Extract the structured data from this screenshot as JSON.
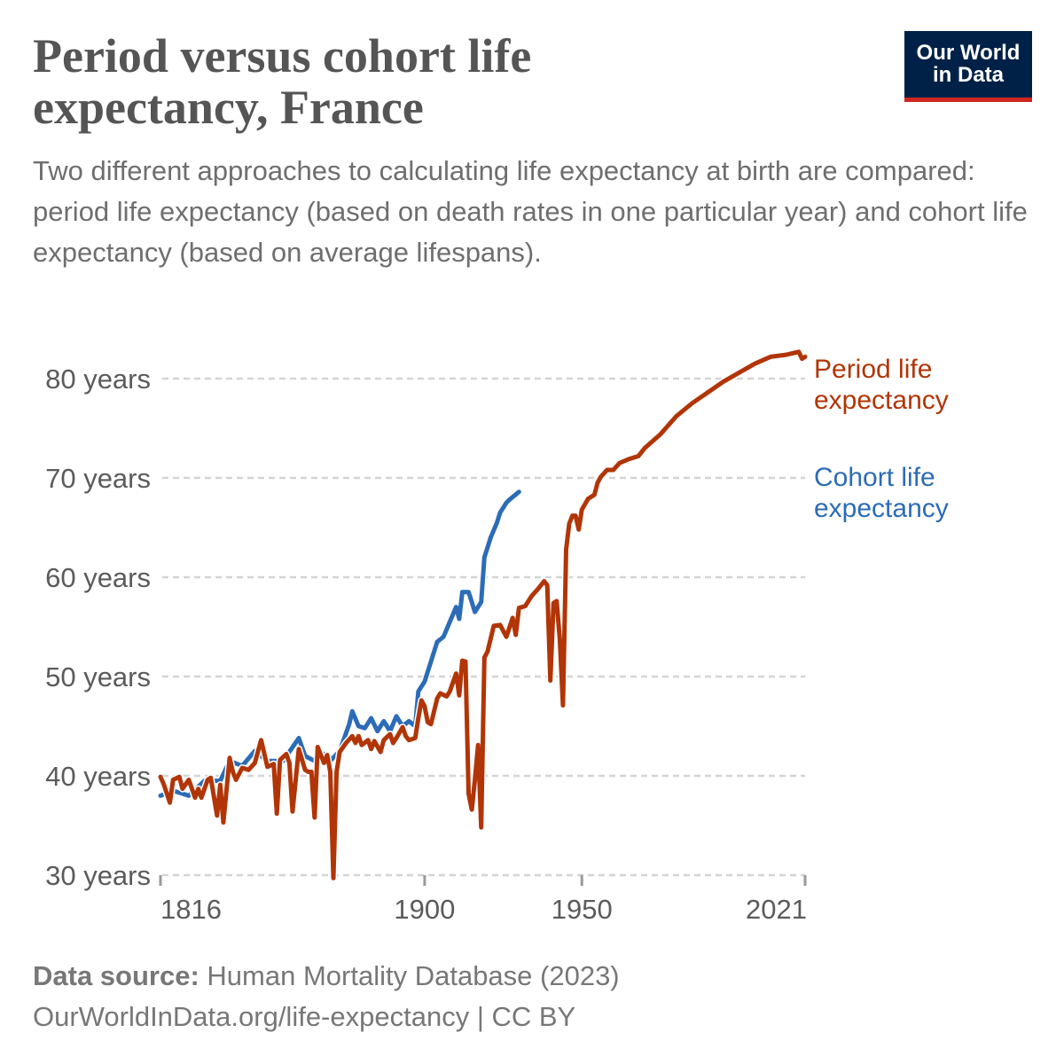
{
  "header": {
    "title": "Period versus cohort life expectancy, France",
    "subtitle": "Two different approaches to calculating life expectancy at birth are compared: period life expectancy (based on death rates in one particular year) and cohort life expectancy (based on average lifespans)."
  },
  "logo": {
    "line1": "Our World",
    "line2": "in Data",
    "bg": "#002147",
    "accent": "#ce261e"
  },
  "footer": {
    "source_label": "Data source:",
    "source": "Human Mortality Database (2023)",
    "url_line": "OurWorldInData.org/life-expectancy | CC BY"
  },
  "chart_data": {
    "type": "line",
    "xlim": [
      1816,
      2021
    ],
    "ylim": [
      30,
      80
    ],
    "grid": true,
    "legend": "inline-right",
    "x_ticks": [
      {
        "value": 1816,
        "label": "1816"
      },
      {
        "value": 1900,
        "label": "1900"
      },
      {
        "value": 1950,
        "label": "1950"
      },
      {
        "value": 2021,
        "label": "2021"
      }
    ],
    "y_ticks": [
      {
        "value": 30,
        "label": "30 years"
      },
      {
        "value": 40,
        "label": "40 years"
      },
      {
        "value": 50,
        "label": "50 years"
      },
      {
        "value": 60,
        "label": "60 years"
      },
      {
        "value": 70,
        "label": "70 years"
      },
      {
        "value": 80,
        "label": "80 years"
      }
    ],
    "series": [
      {
        "name": "Period life expectancy",
        "color": "#b13507",
        "x": [
          1816,
          1817,
          1819,
          1820,
          1822,
          1823,
          1825,
          1827,
          1828,
          1829,
          1831,
          1832,
          1834,
          1835,
          1836,
          1838,
          1839,
          1840,
          1842,
          1844,
          1846,
          1848,
          1850,
          1852,
          1853,
          1854,
          1856,
          1857,
          1858,
          1859,
          1860,
          1862,
          1863,
          1864,
          1865,
          1866,
          1868,
          1869,
          1870,
          1871,
          1872,
          1873,
          1875,
          1877,
          1878,
          1879,
          1880,
          1882,
          1883,
          1884,
          1886,
          1887,
          1889,
          1890,
          1891,
          1893,
          1894,
          1895,
          1897,
          1898,
          1899,
          1900,
          1901,
          1902,
          1904,
          1905,
          1907,
          1908,
          1910,
          1911,
          1912,
          1913,
          1914,
          1915,
          1916,
          1917,
          1918,
          1919,
          1920,
          1922,
          1924,
          1926,
          1928,
          1929,
          1930,
          1932,
          1934,
          1936,
          1938,
          1939,
          1940,
          1941,
          1942,
          1943,
          1944,
          1945,
          1946,
          1947,
          1948,
          1949,
          1950,
          1952,
          1954,
          1955,
          1956,
          1958,
          1960,
          1962,
          1965,
          1968,
          1970,
          1975,
          1980,
          1985,
          1990,
          1995,
          2000,
          2005,
          2010,
          2015,
          2019,
          2020,
          2021
        ],
        "y": [
          39.9,
          39.2,
          37.3,
          39.6,
          39.9,
          38.7,
          39.6,
          37.8,
          38.7,
          37.8,
          39.6,
          39.8,
          36.0,
          39.1,
          35.3,
          41.8,
          40.4,
          39.6,
          40.8,
          40.6,
          41.3,
          43.6,
          40.9,
          41.2,
          36.2,
          41.6,
          42.2,
          41.3,
          36.4,
          39.6,
          42.7,
          40.6,
          40.4,
          40.4,
          35.8,
          42.9,
          41.3,
          42.1,
          40.4,
          29.7,
          40.4,
          42.4,
          43.3,
          44.0,
          43.3,
          44.0,
          43.1,
          43.6,
          42.7,
          43.5,
          42.4,
          43.6,
          44.2,
          43.3,
          43.8,
          44.9,
          44.0,
          43.6,
          43.8,
          45.8,
          47.6,
          47.0,
          45.4,
          45.2,
          47.8,
          48.3,
          48.0,
          48.5,
          50.3,
          48.1,
          51.6,
          51.5,
          38.2,
          36.6,
          39.6,
          43.1,
          34.8,
          51.9,
          52.5,
          55.1,
          55.2,
          54.0,
          55.9,
          54.2,
          56.9,
          57.1,
          58.1,
          58.8,
          59.6,
          59.2,
          49.6,
          57.4,
          57.6,
          53.7,
          47.1,
          62.8,
          65.4,
          66.2,
          66.2,
          64.8,
          66.8,
          67.9,
          68.3,
          69.5,
          70.1,
          70.8,
          70.8,
          71.5,
          71.9,
          72.2,
          73.0,
          74.4,
          76.2,
          77.5,
          78.6,
          79.7,
          80.6,
          81.5,
          82.2,
          82.4,
          82.7,
          82.0,
          82.2
        ]
      },
      {
        "name": "Cohort life expectancy",
        "color": "#2c6cb7",
        "x": [
          1816,
          1820,
          1825,
          1830,
          1835,
          1838,
          1842,
          1846,
          1850,
          1855,
          1860,
          1862,
          1865,
          1868,
          1870,
          1873,
          1876,
          1877,
          1879,
          1881,
          1883,
          1885,
          1887,
          1889,
          1891,
          1893,
          1895,
          1897,
          1898,
          1900,
          1902,
          1904,
          1906,
          1908,
          1910,
          1911,
          1912,
          1914,
          1915,
          1916,
          1918,
          1919,
          1921,
          1923,
          1924,
          1926,
          1927,
          1930
        ],
        "y": [
          38.0,
          38.5,
          38.0,
          39.5,
          39.5,
          41.5,
          41.0,
          42.5,
          41.5,
          41.5,
          43.8,
          42.0,
          41.5,
          42.2,
          41.5,
          42.5,
          45.2,
          46.5,
          45.0,
          44.8,
          45.8,
          44.5,
          45.5,
          44.5,
          46.0,
          45.0,
          45.5,
          45.0,
          48.5,
          49.5,
          51.5,
          53.5,
          54.0,
          55.5,
          57.0,
          55.8,
          58.5,
          58.5,
          57.5,
          56.5,
          57.5,
          62.0,
          64.0,
          65.5,
          66.5,
          67.5,
          67.8,
          68.6
        ]
      }
    ],
    "labels": {
      "period_line1": "Period life",
      "period_line2": "expectancy",
      "cohort_line1": "Cohort life",
      "cohort_line2": "expectancy"
    }
  }
}
